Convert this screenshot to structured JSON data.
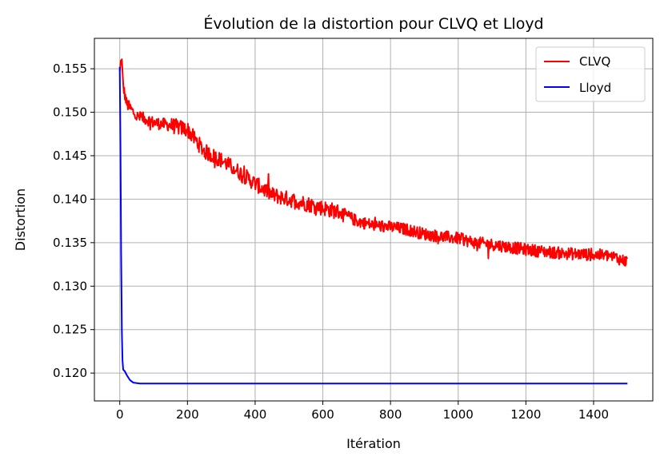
{
  "chart_data": {
    "type": "line",
    "title": "Évolution de la distortion pour CLVQ et Lloyd",
    "xlabel": "Itération",
    "ylabel": "Distortion",
    "xlim": [
      -75,
      1575
    ],
    "ylim": [
      0.1168,
      0.1585
    ],
    "xticks": [
      0,
      200,
      400,
      600,
      800,
      1000,
      1200,
      1400
    ],
    "yticks": [
      0.12,
      0.125,
      0.13,
      0.135,
      0.14,
      0.145,
      0.15,
      0.155
    ],
    "xtick_labels": [
      "0",
      "200",
      "400",
      "600",
      "800",
      "1000",
      "1200",
      "1400"
    ],
    "ytick_labels": [
      "0.120",
      "0.125",
      "0.130",
      "0.135",
      "0.140",
      "0.145",
      "0.150",
      "0.155"
    ],
    "grid": true,
    "legend_position": "top-right",
    "series": [
      {
        "name": "CLVQ",
        "color": "#ff0000",
        "noisy": true,
        "x": [
          0,
          5,
          10,
          20,
          30,
          50,
          80,
          100,
          150,
          200,
          250,
          300,
          350,
          400,
          450,
          500,
          550,
          600,
          650,
          700,
          750,
          800,
          850,
          900,
          950,
          1000,
          1050,
          1100,
          1150,
          1200,
          1250,
          1300,
          1350,
          1400,
          1450,
          1500
        ],
        "y": [
          0.1545,
          0.1565,
          0.153,
          0.151,
          0.1505,
          0.1495,
          0.1492,
          0.1488,
          0.1485,
          0.148,
          0.1455,
          0.1445,
          0.1432,
          0.1418,
          0.1405,
          0.14,
          0.1395,
          0.139,
          0.1385,
          0.1375,
          0.137,
          0.1368,
          0.1365,
          0.136,
          0.1357,
          0.1355,
          0.135,
          0.1348,
          0.1345,
          0.1342,
          0.134,
          0.1338,
          0.1337,
          0.1336,
          0.1335,
          0.1328
        ]
      },
      {
        "name": "Lloyd",
        "color": "#0000ff",
        "noisy": false,
        "x": [
          0,
          2,
          4,
          6,
          8,
          10,
          15,
          20,
          30,
          40,
          60,
          100,
          200,
          400,
          800,
          1200,
          1500
        ],
        "y": [
          0.1552,
          0.146,
          0.134,
          0.125,
          0.1215,
          0.1204,
          0.1202,
          0.1198,
          0.1192,
          0.1189,
          0.1188,
          0.1188,
          0.1188,
          0.1188,
          0.1188,
          0.1188,
          0.1188
        ]
      }
    ]
  }
}
